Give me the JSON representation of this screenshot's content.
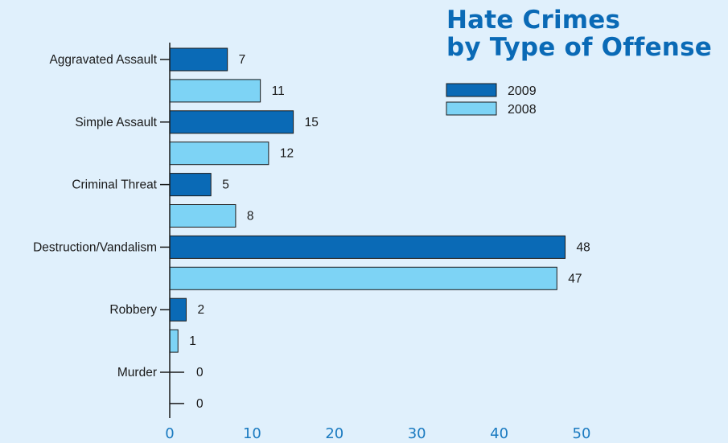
{
  "title_lines": [
    "Hate Crimes",
    "by Type of Offense"
  ],
  "chart_data": {
    "type": "bar",
    "orientation": "horizontal",
    "title": "Hate Crimes by Type of Offense",
    "categories": [
      "Aggravated Assault",
      "Simple Assault",
      "Criminal Threat",
      "Destruction/Vandalism",
      "Robbery",
      "Murder"
    ],
    "series": [
      {
        "name": "2009",
        "color": "#0a6ab6",
        "values": [
          7,
          15,
          5,
          48,
          2,
          0
        ]
      },
      {
        "name": "2008",
        "color": "#7dd3f5",
        "values": [
          11,
          12,
          8,
          47,
          1,
          0
        ]
      }
    ],
    "xlim": [
      0,
      50
    ],
    "xticks": [
      0,
      10,
      20,
      30,
      40,
      50
    ],
    "xlabel": "",
    "ylabel": "",
    "grid": false,
    "legend_position": "top-right"
  }
}
